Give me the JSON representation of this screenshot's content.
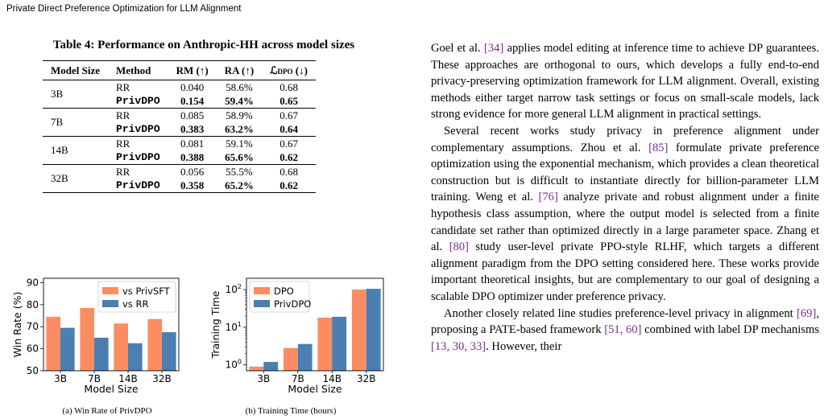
{
  "running_header": "Private Direct Preference Optimization for LLM Alignment",
  "table": {
    "caption": "Table 4: Performance on Anthropic-HH across model sizes",
    "headers": [
      "Model Size",
      "Method",
      "RM (↑)",
      "RA (↑)",
      "ℒ",
      "DPO",
      " (↓)"
    ],
    "groups": [
      {
        "size": "3B",
        "rows": [
          {
            "method": "RR",
            "rm": "0.040",
            "ra": "58.6%",
            "loss": "0.68",
            "bold": false
          },
          {
            "method": "PrivDPO",
            "rm": "0.154",
            "ra": "59.4%",
            "loss": "0.65",
            "bold": true
          }
        ]
      },
      {
        "size": "7B",
        "rows": [
          {
            "method": "RR",
            "rm": "0.085",
            "ra": "58.9%",
            "loss": "0.67",
            "bold": false
          },
          {
            "method": "PrivDPO",
            "rm": "0.383",
            "ra": "63.2%",
            "loss": "0.64",
            "bold": true
          }
        ]
      },
      {
        "size": "14B",
        "rows": [
          {
            "method": "RR",
            "rm": "0.081",
            "ra": "59.1%",
            "loss": "0.67",
            "bold": false
          },
          {
            "method": "PrivDPO",
            "rm": "0.388",
            "ra": "65.6%",
            "loss": "0.62",
            "bold": true
          }
        ]
      },
      {
        "size": "32B",
        "rows": [
          {
            "method": "RR",
            "rm": "0.056",
            "ra": "55.5%",
            "loss": "0.68",
            "bold": false
          },
          {
            "method": "PrivDPO",
            "rm": "0.358",
            "ra": "65.2%",
            "loss": "0.62",
            "bold": true
          }
        ]
      }
    ]
  },
  "chart_data": [
    {
      "type": "bar",
      "caption": "(a) Win Rate of PrivDPO",
      "categories": [
        "3B",
        "7B",
        "14B",
        "32B"
      ],
      "series": [
        {
          "name": "vs PrivSFT",
          "values": [
            74.5,
            78.5,
            71.5,
            73.5
          ],
          "color": "#fc8d62"
        },
        {
          "name": "vs RR",
          "values": [
            69.5,
            65.0,
            62.5,
            67.5
          ],
          "color": "#4a7fb0"
        }
      ],
      "xlabel": "Model Size",
      "ylabel": "Win Rate (%)",
      "ylim": [
        50,
        92
      ],
      "yticks": [
        50,
        60,
        70,
        80,
        90
      ],
      "legend": "top-right"
    },
    {
      "type": "bar",
      "caption": "(b) Training Time (hours)",
      "categories": [
        "3B",
        "7B",
        "14B",
        "32B"
      ],
      "series": [
        {
          "name": "DPO",
          "values": [
            0.9,
            2.8,
            18,
            100
          ],
          "color": "#fc8d62"
        },
        {
          "name": "PrivDPO",
          "values": [
            1.2,
            3.6,
            19,
            105
          ],
          "color": "#4a7fb0"
        }
      ],
      "xlabel": "Model Size",
      "ylabel": "Training Time",
      "yscale": "log",
      "ylim": [
        0.7,
        200
      ],
      "yticks": [
        "10^0",
        "10^1",
        "10^2"
      ],
      "legend": "top-left"
    }
  ],
  "body": {
    "p1": [
      {
        "t": "Goel et al. "
      },
      {
        "t": "[34]",
        "c": true
      },
      {
        "t": " applies model editing at inference time to achieve DP guarantees. These approaches are orthogonal to ours, which develops a fully end-to-end privacy-preserving optimization framework for LLM alignment. Overall, existing methods either target narrow task settings or focus on small-scale models, lack strong evidence for more general LLM alignment in practical settings."
      }
    ],
    "p2": [
      {
        "t": "Several recent works study privacy in preference alignment under complementary assumptions. Zhou et al. "
      },
      {
        "t": "[85]",
        "c": true
      },
      {
        "t": " formulate private preference optimization using the exponential mechanism, which provides a clean theoretical construction but is difficult to instantiate directly for billion-parameter LLM training. Weng et al. "
      },
      {
        "t": "[76]",
        "c": true
      },
      {
        "t": " analyze private and robust alignment under a finite hypothesis class assumption, where the output model is selected from a finite candidate set rather than optimized directly in a large parameter space. Zhang et al. "
      },
      {
        "t": "[80]",
        "c": true
      },
      {
        "t": " study user-level private PPO-style RLHF, which targets a different alignment paradigm from the DPO setting considered here. These works provide important theoretical insights, but are complementary to our goal of designing a scalable DPO optimizer under preference privacy."
      }
    ],
    "p3": [
      {
        "t": "Another closely related line studies preference-level privacy in alignment "
      },
      {
        "t": "[69]",
        "c": true
      },
      {
        "t": ", proposing a PATE-based framework "
      },
      {
        "t": "[51, 60]",
        "c": true
      },
      {
        "t": " combined with label DP mechanisms "
      },
      {
        "t": "[13, 30, 33]",
        "c": true
      },
      {
        "t": ". However, their"
      }
    ]
  }
}
